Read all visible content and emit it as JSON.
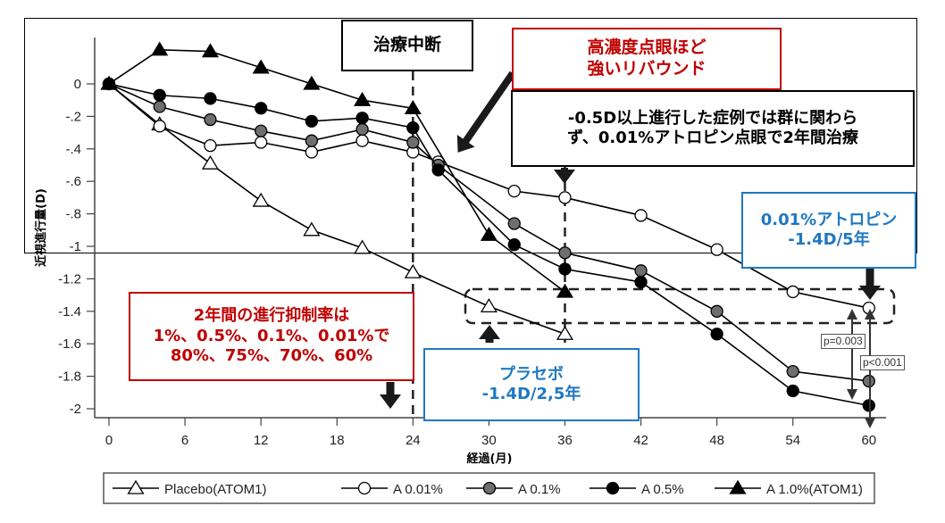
{
  "chart_data": {
    "type": "line",
    "title": "",
    "xlabel": "経過(月)",
    "ylabel": "近視進行量(D)",
    "xlim": [
      0,
      60
    ],
    "ylim": [
      -2.05,
      0.25
    ],
    "x_ticks": [
      0,
      6,
      12,
      18,
      24,
      30,
      36,
      42,
      48,
      54,
      60
    ],
    "y_ticks": [
      0,
      -0.2,
      -0.4,
      -0.6,
      -0.8,
      -1,
      -1.2,
      -1.4,
      -1.6,
      -1.8,
      -2
    ],
    "y_tick_labels": [
      "0",
      "-.2",
      "-.4",
      "-.6",
      "-.8",
      "-1",
      "-1.2",
      "-1.4",
      "-1.6",
      "-1.8",
      "-2"
    ],
    "grid": false,
    "legend_position": "bottom",
    "series": [
      {
        "name": "Placebo(ATOM1)",
        "marker": "triangle-open",
        "x": [
          0,
          4,
          8,
          12,
          16,
          20,
          24,
          30,
          36
        ],
        "y": [
          0,
          -0.25,
          -0.49,
          -0.72,
          -0.9,
          -1.01,
          -1.16,
          -1.37,
          -1.54
        ]
      },
      {
        "name": "A 0.01%",
        "marker": "circle-open",
        "x": [
          0,
          4,
          8,
          12,
          16,
          20,
          24,
          26,
          32,
          36,
          42,
          48,
          54,
          60
        ],
        "y": [
          0,
          -0.26,
          -0.38,
          -0.36,
          -0.42,
          -0.35,
          -0.42,
          -0.48,
          -0.66,
          -0.7,
          -0.81,
          -1.02,
          -1.28,
          -1.38
        ]
      },
      {
        "name": "A 0.1%",
        "marker": "circle-gray",
        "x": [
          0,
          4,
          8,
          12,
          16,
          20,
          24,
          26,
          32,
          36,
          42,
          48,
          54,
          60
        ],
        "y": [
          0,
          -0.14,
          -0.22,
          -0.29,
          -0.35,
          -0.28,
          -0.36,
          -0.5,
          -0.86,
          -1.04,
          -1.15,
          -1.4,
          -1.77,
          -1.83
        ]
      },
      {
        "name": "A 0.5%",
        "marker": "circle-filled",
        "x": [
          0,
          4,
          8,
          12,
          16,
          20,
          24,
          26,
          32,
          36,
          42,
          48,
          54,
          60
        ],
        "y": [
          0,
          -0.07,
          -0.09,
          -0.15,
          -0.23,
          -0.21,
          -0.27,
          -0.53,
          -0.99,
          -1.14,
          -1.22,
          -1.54,
          -1.89,
          -1.98
        ]
      },
      {
        "name": "A 1.0%(ATOM1)",
        "marker": "triangle-filled",
        "x": [
          0,
          4,
          8,
          12,
          16,
          20,
          24,
          30,
          36
        ],
        "y": [
          0,
          0.21,
          0.2,
          0.1,
          0.0,
          -0.1,
          -0.15,
          -0.93,
          -1.28
        ]
      }
    ],
    "annotations": [
      {
        "id": "stop",
        "lines": [
          "治療中断"
        ],
        "x_line": 24
      },
      {
        "id": "rebound",
        "lines": [
          "高濃度点眼ほど",
          "強いリバウンド"
        ]
      },
      {
        "id": "rescue",
        "lines": [
          "-0.5D以上進行した症例では群に関わら",
          "ず、0.01%アトロピン点眼で2年間治療"
        ],
        "x_line": 36
      },
      {
        "id": "atropine",
        "lines": [
          "0.01%アトロピン",
          "-1.4D/5年"
        ]
      },
      {
        "id": "inhibition",
        "lines": [
          "2年間の進行抑制率は",
          "1%、0.5%、0.1%、0.01%で",
          "80%、75%、70%、60%"
        ]
      },
      {
        "id": "placebo",
        "lines": [
          "プラセボ",
          "-1.4D/2,5年"
        ]
      },
      {
        "id": "p1",
        "text": "p=0.003"
      },
      {
        "id": "p2",
        "text": "p<0.001"
      }
    ]
  },
  "callouts": {
    "stop": {
      "l1": "治療中断"
    },
    "rebound": {
      "l1": "高濃度点眼ほど",
      "l2": "強いリバウンド"
    },
    "rescue": {
      "l1": "-0.5D以上進行した症例では群に関わら",
      "l2": "ず、0.01%アトロピン点眼で2年間治療"
    },
    "atropine": {
      "l1": "0.01%アトロピン",
      "l2": "-1.4D/5年"
    },
    "inhibition": {
      "l1": "2年間の進行抑制率は",
      "l2": "1%、0.5%、0.1%、0.01%で",
      "l3": "80%、75%、70%、60%"
    },
    "placebo": {
      "l1": "プラセボ",
      "l2": "-1.4D/2,5年"
    },
    "p1": "p=0.003",
    "p2": "p<0.001"
  },
  "colors": {
    "red": "#c00000",
    "blue": "#1f78c1",
    "gray_marker": "#6e6e6e",
    "line": "#000000"
  }
}
